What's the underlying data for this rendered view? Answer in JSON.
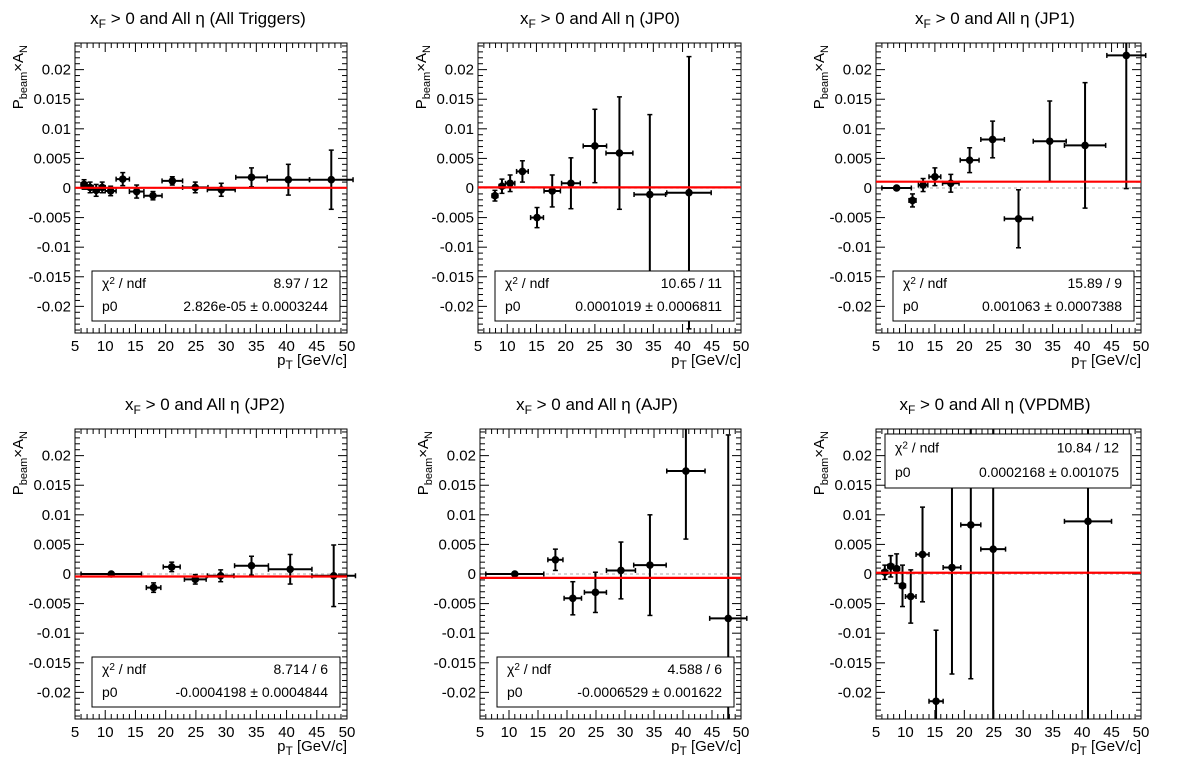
{
  "colors": {
    "fit": "#ff0000",
    "points": "#000000",
    "zero_line": "#bbbbbb"
  },
  "axis_labels": {
    "x": "p",
    "x_sub": "T",
    "x_unit": "[GeV/c]",
    "y_main": "P",
    "y_sub": "beam",
    "y_times": "×A",
    "y_sub2": "N"
  },
  "stat_labels": {
    "chi2": "χ",
    "chi2_sup": "2",
    "chi2_rest": " / ndf",
    "p0": "p0",
    "pm": " ± "
  },
  "x_ticks": [
    "5",
    "10",
    "15",
    "20",
    "25",
    "30",
    "35",
    "40",
    "45",
    "50"
  ],
  "y_ticks": [
    "0.02",
    "0.015",
    "0.01",
    "0.005",
    "0",
    "-0.005",
    "-0.01",
    "-0.015",
    "-0.02"
  ],
  "chart_data": [
    {
      "type": "scatter",
      "title": "x",
      "title_sub": "F",
      "title_rest": " > 0 and All η (All Triggers)",
      "xlim": [
        5,
        50
      ],
      "ylim": [
        -0.0245,
        0.0245
      ],
      "stats_box": "bottom",
      "chi2": "8.97 / 12",
      "p0": "2.826e-05",
      "p0_err": "0.0003244",
      "fit": 2.83e-05,
      "points": [
        {
          "x": 6.5,
          "xerr": 0.5,
          "y": 0.0006,
          "yerr": 0.0008
        },
        {
          "x": 7.5,
          "xerr": 0.5,
          "y": 0.0001,
          "yerr": 0.0009
        },
        {
          "x": 8.5,
          "xerr": 0.5,
          "y": -0.0004,
          "yerr": 0.001
        },
        {
          "x": 9.5,
          "xerr": 0.5,
          "y": 0.0001,
          "yerr": 0.0009
        },
        {
          "x": 10.9,
          "xerr": 0.9,
          "y": -0.0005,
          "yerr": 0.0008
        },
        {
          "x": 12.9,
          "xerr": 1.1,
          "y": 0.0015,
          "yerr": 0.0011
        },
        {
          "x": 15.2,
          "xerr": 1.2,
          "y": -0.0006,
          "yerr": 0.0011
        },
        {
          "x": 17.9,
          "xerr": 1.5,
          "y": -0.0013,
          "yerr": 0.0007
        },
        {
          "x": 21.1,
          "xerr": 1.7,
          "y": 0.0012,
          "yerr": 0.0007
        },
        {
          "x": 24.9,
          "xerr": 2.1,
          "y": 0.0001,
          "yerr": 0.0009
        },
        {
          "x": 29.2,
          "xerr": 2.3,
          "y": -0.0003,
          "yerr": 0.0011
        },
        {
          "x": 34.2,
          "xerr": 2.6,
          "y": 0.0018,
          "yerr": 0.0016
        },
        {
          "x": 40.3,
          "xerr": 3.5,
          "y": 0.0014,
          "yerr": 0.0026
        },
        {
          "x": 47.4,
          "xerr": 3.6,
          "y": 0.0014,
          "yerr": 0.005
        }
      ]
    },
    {
      "type": "scatter",
      "title": "x",
      "title_sub": "F",
      "title_rest": " > 0 and All η (JP0)",
      "xlim": [
        5,
        50
      ],
      "ylim": [
        -0.0245,
        0.0245
      ],
      "stats_box": "bottom",
      "chi2": "10.65 / 11",
      "p0": "0.0001019",
      "p0_err": "0.0006811",
      "fit": 0.0001019,
      "points": [
        {
          "x": 7.9,
          "xerr": 0.5,
          "y": -0.0013,
          "yerr": 0.0009
        },
        {
          "x": 9.1,
          "xerr": 0.5,
          "y": 0.0003,
          "yerr": 0.0012
        },
        {
          "x": 10.5,
          "xerr": 0.8,
          "y": 0.0008,
          "yerr": 0.0014
        },
        {
          "x": 12.6,
          "xerr": 1.0,
          "y": 0.0028,
          "yerr": 0.0018
        },
        {
          "x": 15.1,
          "xerr": 1.1,
          "y": -0.005,
          "yerr": 0.0017
        },
        {
          "x": 17.7,
          "xerr": 1.4,
          "y": -0.0005,
          "yerr": 0.0027
        },
        {
          "x": 20.9,
          "xerr": 1.6,
          "y": 0.0008,
          "yerr": 0.0043
        },
        {
          "x": 25.0,
          "xerr": 2.0,
          "y": 0.0071,
          "yerr": 0.0062
        },
        {
          "x": 29.2,
          "xerr": 2.3,
          "y": 0.0059,
          "yerr": 0.0095
        },
        {
          "x": 34.4,
          "xerr": 2.7,
          "y": -0.0011,
          "yerr": 0.0135
        },
        {
          "x": 41.1,
          "xerr": 3.8,
          "y": -0.0008,
          "yerr": 0.023
        }
      ]
    },
    {
      "type": "scatter",
      "title": "x",
      "title_sub": "F",
      "title_rest": " > 0 and All η (JP1)",
      "xlim": [
        5,
        50
      ],
      "ylim": [
        -0.0245,
        0.0245
      ],
      "stats_box": "bottom",
      "chi2": "15.89 / 9",
      "p0": "0.001063",
      "p0_err": "0.0007388",
      "fit": 0.001063,
      "points": [
        {
          "x": 8.5,
          "xerr": 2.5,
          "y": 0.0,
          "yerr": 0
        },
        {
          "x": 11.2,
          "xerr": 0.6,
          "y": -0.0021,
          "yerr": 0.0011
        },
        {
          "x": 13.0,
          "xerr": 0.8,
          "y": 0.0005,
          "yerr": 0.0011
        },
        {
          "x": 15.0,
          "xerr": 1.0,
          "y": 0.0019,
          "yerr": 0.0015
        },
        {
          "x": 17.7,
          "xerr": 1.4,
          "y": 0.0008,
          "yerr": 0.0015
        },
        {
          "x": 20.9,
          "xerr": 1.6,
          "y": 0.0047,
          "yerr": 0.0021
        },
        {
          "x": 24.8,
          "xerr": 2.0,
          "y": 0.0082,
          "yerr": 0.0031
        },
        {
          "x": 29.2,
          "xerr": 2.4,
          "y": -0.0052,
          "yerr": 0.0049
        },
        {
          "x": 34.5,
          "xerr": 2.8,
          "y": 0.0079,
          "yerr": 0.0068
        },
        {
          "x": 40.5,
          "xerr": 3.5,
          "y": 0.0072,
          "yerr": 0.0106
        },
        {
          "x": 47.5,
          "xerr": 3.3,
          "y": 0.0224,
          "yerr": 0.0225
        }
      ]
    },
    {
      "type": "scatter",
      "title": "x",
      "title_sub": "F",
      "title_rest": " > 0 and All η (JP2)",
      "xlim": [
        5,
        50
      ],
      "ylim": [
        -0.0245,
        0.0245
      ],
      "stats_box": "bottom",
      "chi2": "8.714 / 6",
      "p0": "-0.0004198",
      "p0_err": "0.0004844",
      "fit": -0.0004198,
      "points": [
        {
          "x": 11.0,
          "xerr": 5.0,
          "y": 0.0,
          "yerr": 0
        },
        {
          "x": 18.0,
          "xerr": 1.2,
          "y": -0.0023,
          "yerr": 0.0008
        },
        {
          "x": 21.0,
          "xerr": 1.4,
          "y": 0.0012,
          "yerr": 0.0008
        },
        {
          "x": 24.9,
          "xerr": 1.8,
          "y": -0.0009,
          "yerr": 0.0008
        },
        {
          "x": 29.1,
          "xerr": 2.2,
          "y": -0.0003,
          "yerr": 0.001
        },
        {
          "x": 34.2,
          "xerr": 2.8,
          "y": 0.0014,
          "yerr": 0.0016
        },
        {
          "x": 40.6,
          "xerr": 3.6,
          "y": 0.0008,
          "yerr": 0.0025
        },
        {
          "x": 47.8,
          "xerr": 3.6,
          "y": -0.0003,
          "yerr": 0.0052
        }
      ]
    },
    {
      "type": "scatter",
      "title": "x",
      "title_sub": "F",
      "title_rest": " > 0 and All η (AJP)",
      "xlim": [
        5,
        50
      ],
      "ylim": [
        -0.0245,
        0.0245
      ],
      "stats_box": "bottom",
      "chi2": "4.588 / 6",
      "p0": "-0.0006529",
      "p0_err": "0.001622",
      "fit": -0.0006529,
      "points": [
        {
          "x": 11.0,
          "xerr": 5.0,
          "y": 0.0,
          "yerr": 0
        },
        {
          "x": 18.0,
          "xerr": 1.3,
          "y": 0.0024,
          "yerr": 0.0018
        },
        {
          "x": 21.0,
          "xerr": 1.5,
          "y": -0.0041,
          "yerr": 0.0028
        },
        {
          "x": 24.9,
          "xerr": 1.9,
          "y": -0.0031,
          "yerr": 0.0034
        },
        {
          "x": 29.3,
          "xerr": 2.5,
          "y": 0.0006,
          "yerr": 0.0048
        },
        {
          "x": 34.3,
          "xerr": 2.8,
          "y": 0.0015,
          "yerr": 0.0085
        },
        {
          "x": 40.5,
          "xerr": 3.3,
          "y": 0.0174,
          "yerr": 0.0115
        },
        {
          "x": 47.8,
          "xerr": 3.2,
          "y": -0.0075,
          "yerr": 0.031
        }
      ]
    },
    {
      "type": "scatter",
      "title": "x",
      "title_sub": "F",
      "title_rest": " > 0 and All η (VPDMB)",
      "xlim": [
        5,
        50
      ],
      "ylim": [
        -0.0245,
        0.0245
      ],
      "stats_box": "top",
      "chi2": "10.84 / 12",
      "p0": "0.0002168",
      "p0_err": "0.001075",
      "fit": 0.0002168,
      "points": [
        {
          "x": 6.5,
          "xerr": 0.5,
          "y": 0.0003,
          "yerr": 0.0012
        },
        {
          "x": 7.5,
          "xerr": 0.5,
          "y": 0.0013,
          "yerr": 0.0018
        },
        {
          "x": 8.5,
          "xerr": 0.5,
          "y": 0.0009,
          "yerr": 0.0025
        },
        {
          "x": 9.5,
          "xerr": 0.5,
          "y": -0.002,
          "yerr": 0.0035
        },
        {
          "x": 10.9,
          "xerr": 0.9,
          "y": -0.0038,
          "yerr": 0.0045
        },
        {
          "x": 12.9,
          "xerr": 1.1,
          "y": 0.0033,
          "yerr": 0.008
        },
        {
          "x": 15.2,
          "xerr": 1.2,
          "y": -0.0215,
          "yerr": 0.012
        },
        {
          "x": 17.9,
          "xerr": 1.5,
          "y": 0.0011,
          "yerr": 0.018
        },
        {
          "x": 21.1,
          "xerr": 1.7,
          "y": 0.0083,
          "yerr": 0.026
        },
        {
          "x": 24.9,
          "xerr": 2.1,
          "y": 0.0042,
          "yerr": 0.035
        },
        {
          "x": 41.0,
          "xerr": 4.0,
          "y": 0.0089,
          "yerr": 0.04
        }
      ]
    }
  ]
}
